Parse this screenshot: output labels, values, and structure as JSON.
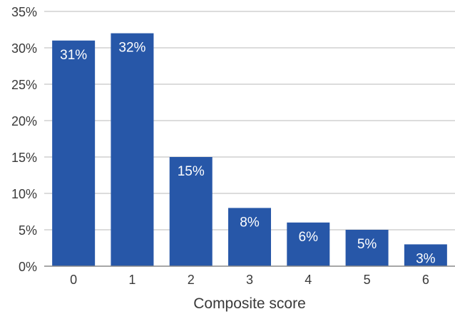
{
  "chart_data": {
    "type": "bar",
    "categories": [
      "0",
      "1",
      "2",
      "3",
      "4",
      "5",
      "6"
    ],
    "values": [
      31,
      32,
      15,
      8,
      6,
      5,
      3
    ],
    "value_labels": [
      "31%",
      "32%",
      "15%",
      "8%",
      "6%",
      "5%",
      "3%"
    ],
    "title": "",
    "xlabel": "Composite score",
    "ylabel": "",
    "ylim": [
      0,
      35
    ],
    "y_ticks": [
      0,
      5,
      10,
      15,
      20,
      25,
      30,
      35
    ],
    "y_tick_labels": [
      "0%",
      "5%",
      "10%",
      "15%",
      "20%",
      "25%",
      "30%",
      "35%"
    ],
    "grid": "horizontal",
    "legend": "none",
    "colors": {
      "bar": "#2757a8",
      "grid": "#b8b8b8",
      "axis": "#8a8a8a",
      "text": "#3a3a3a",
      "label": "#ffffff"
    }
  }
}
